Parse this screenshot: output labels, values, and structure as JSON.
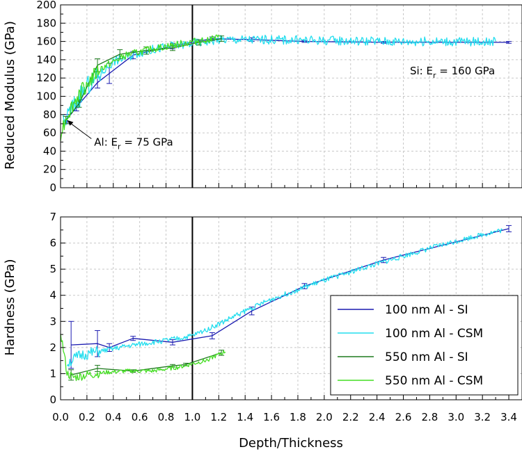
{
  "chart_data": [
    {
      "type": "line",
      "ylabel": "Reduced Modulus (GPa)",
      "xlim": [
        0.0,
        3.5
      ],
      "ylim": [
        0,
        200
      ],
      "yticks": [
        0,
        20,
        40,
        60,
        80,
        100,
        120,
        140,
        160,
        180,
        200
      ],
      "grid": true,
      "reference_line_x": 1.0,
      "annotations": [
        {
          "text": "Si:  E",
          "sub": "r",
          "rest": " = 160 GPa",
          "x": 2.65,
          "y": 124
        },
        {
          "text": "Al: E",
          "sub": "r",
          "rest": " = 75 GPa",
          "x": 0.255,
          "y": 46,
          "arrow_to": [
            0.05,
            74
          ]
        }
      ],
      "series": [
        {
          "name": "100 nm Al - SI",
          "color": "#1a1ab0",
          "x": [
            0.05,
            0.12,
            0.28,
            0.37,
            0.55,
            0.85,
            1.15,
            1.45,
            1.85,
            2.45,
            3.4
          ],
          "y": [
            75,
            88,
            115,
            125,
            145,
            155,
            163,
            162,
            160,
            159,
            159
          ],
          "err": [
            5,
            4,
            6,
            11,
            4,
            3,
            2,
            2,
            1,
            1,
            1
          ]
        },
        {
          "name": "100 nm Al - CSM",
          "color": "#22ddee",
          "noisy": true,
          "noise": 5,
          "x": [
            0.02,
            0.1,
            0.2,
            0.4,
            0.6,
            0.8,
            1.0,
            1.2,
            1.6,
            2.0,
            2.5,
            3.0,
            3.3
          ],
          "y": [
            70,
            90,
            110,
            138,
            148,
            154,
            158,
            162,
            162,
            161,
            160,
            160,
            160
          ]
        },
        {
          "name": "550 nm Al - SI",
          "color": "#1e7a1e",
          "x": [
            0.04,
            0.14,
            0.28,
            0.45,
            0.65,
            0.85,
            1.05,
            1.22
          ],
          "y": [
            74,
            92,
            134,
            146,
            150,
            153,
            159,
            163
          ],
          "err": [
            4,
            4,
            7,
            5,
            4,
            3,
            3,
            3
          ]
        },
        {
          "name": "550 nm Al - CSM",
          "color": "#44dd22",
          "noisy": true,
          "noise": 4,
          "x": [
            0.0,
            0.05,
            0.15,
            0.3,
            0.5,
            0.7,
            0.9,
            1.1,
            1.2
          ],
          "y": [
            60,
            80,
            105,
            130,
            145,
            152,
            157,
            162,
            164
          ]
        }
      ]
    },
    {
      "type": "line",
      "xlabel": "Depth/Thickness",
      "ylabel": "Hardness (GPa)",
      "xlim": [
        0.0,
        3.5
      ],
      "ylim": [
        0,
        7
      ],
      "yticks": [
        0,
        1,
        2,
        3,
        4,
        5,
        6,
        7
      ],
      "xticks": [
        "0.0",
        "0.2",
        "0.4",
        "0.6",
        "0.8",
        "1.0",
        "1.2",
        "1.4",
        "1.6",
        "1.8",
        "2.0",
        "2.2",
        "2.4",
        "2.6",
        "2.8",
        "3.0",
        "3.2",
        "3.4"
      ],
      "grid": true,
      "reference_line_x": 1.0,
      "legend_position": "bottom-right",
      "series": [
        {
          "name": "100 nm Al - SI",
          "color": "#1a1ab0",
          "x": [
            0.08,
            0.28,
            0.37,
            0.55,
            0.85,
            1.15,
            1.45,
            1.85,
            2.45,
            3.4
          ],
          "y": [
            2.1,
            2.15,
            2.0,
            2.35,
            2.2,
            2.45,
            3.4,
            4.35,
            5.35,
            6.55
          ],
          "err": [
            0.9,
            0.5,
            0.15,
            0.08,
            0.1,
            0.12,
            0.15,
            0.1,
            0.1,
            0.12
          ]
        },
        {
          "name": "100 nm Al - CSM",
          "color": "#22ddee",
          "noisy": true,
          "noise": 0.1,
          "x": [
            0.05,
            0.15,
            0.3,
            0.5,
            0.7,
            0.9,
            1.0,
            1.2,
            1.4,
            1.6,
            1.9,
            2.2,
            2.5,
            2.8,
            3.1,
            3.35
          ],
          "y": [
            1.4,
            1.7,
            1.85,
            2.05,
            2.2,
            2.35,
            2.45,
            2.9,
            3.4,
            3.85,
            4.4,
            4.9,
            5.35,
            5.8,
            6.2,
            6.5
          ]
        },
        {
          "name": "550 nm Al - SI",
          "color": "#1e7a1e",
          "x": [
            0.08,
            0.28,
            0.55,
            0.85,
            0.95,
            1.22
          ],
          "y": [
            0.95,
            1.2,
            1.1,
            1.3,
            1.35,
            1.8
          ],
          "err": [
            0.2,
            0.12,
            0.05,
            0.05,
            0.05,
            0.1
          ]
        },
        {
          "name": "550 nm Al - CSM",
          "color": "#44dd22",
          "noisy": true,
          "noise": 0.08,
          "x": [
            0.0,
            0.05,
            0.1,
            0.2,
            0.35,
            0.5,
            0.7,
            0.9,
            1.1,
            1.25
          ],
          "y": [
            2.6,
            1.0,
            0.85,
            0.95,
            1.05,
            1.1,
            1.1,
            1.25,
            1.5,
            1.85
          ]
        }
      ]
    }
  ]
}
